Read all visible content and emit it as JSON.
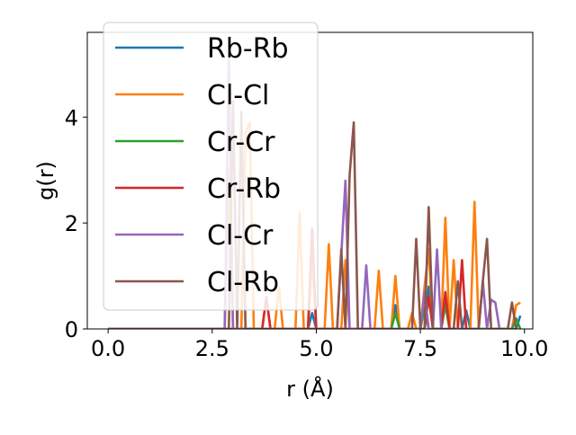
{
  "chart_data": {
    "type": "line",
    "title": "",
    "xlabel": "r (Å)",
    "ylabel": "g(r)",
    "xlim": [
      -0.5,
      10.2
    ],
    "ylim": [
      0,
      5.6
    ],
    "xticks": [
      0.0,
      2.5,
      5.0,
      7.5,
      10.0
    ],
    "xtick_labels": [
      "0.0",
      "2.5",
      "5.0",
      "7.5",
      "10.0"
    ],
    "yticks": [
      0,
      2,
      4
    ],
    "ytick_labels": [
      "0",
      "2",
      "4"
    ],
    "grid": false,
    "legend_position": "upper-left",
    "series": [
      {
        "name": "Rb-Rb",
        "color": "#1f77b4",
        "x": [
          0.0,
          4.8,
          4.9,
          5.0,
          6.8,
          6.9,
          7.0,
          7.6,
          7.7,
          7.8,
          8.0,
          8.1,
          8.2,
          8.5,
          8.6,
          8.7,
          9.8,
          9.9
        ],
        "y": [
          0,
          0,
          0.3,
          0,
          0,
          0.45,
          0,
          0,
          0.8,
          0,
          0,
          0.6,
          0,
          0,
          0.35,
          0,
          0,
          0.25
        ]
      },
      {
        "name": "Cl-Cl",
        "color": "#ff7f0e",
        "x": [
          0.0,
          2.8,
          2.9,
          3.0,
          3.1,
          3.2,
          3.3,
          3.4,
          3.5,
          3.6,
          3.7,
          3.8,
          3.9,
          4.0,
          4.1,
          4.2,
          4.3,
          4.4,
          4.5,
          4.6,
          4.7,
          4.8,
          4.9,
          5.0,
          5.1,
          5.2,
          5.3,
          5.4,
          5.5,
          5.6,
          5.7,
          5.8,
          5.9,
          6.0,
          6.1,
          6.2,
          6.3,
          6.4,
          6.5,
          6.6,
          6.7,
          6.8,
          6.9,
          7.0,
          7.1,
          7.2,
          7.3,
          7.4,
          7.5,
          7.6,
          7.7,
          7.8,
          7.9,
          8.0,
          8.1,
          8.2,
          8.3,
          8.4,
          8.5,
          8.6,
          8.7,
          8.8,
          8.9,
          9.0,
          9.1,
          9.2,
          9.3,
          9.4,
          9.5,
          9.6,
          9.7,
          9.8,
          9.9
        ],
        "y": [
          0,
          0,
          3.0,
          0,
          0,
          0,
          3.7,
          3.9,
          0,
          0,
          0,
          0.6,
          0,
          0,
          0.8,
          0,
          0,
          0,
          0,
          2.2,
          0,
          0,
          1.3,
          0,
          0,
          0,
          1.6,
          0,
          0,
          0,
          1.3,
          0,
          0,
          0,
          0,
          0,
          0,
          0,
          1.1,
          0,
          0,
          0,
          1.0,
          0,
          0,
          0,
          0.3,
          0,
          0,
          0.8,
          1.5,
          0,
          0,
          0,
          2.1,
          0,
          1.3,
          0,
          0,
          0,
          0,
          2.4,
          0,
          0,
          0,
          0,
          0,
          0,
          0,
          0,
          0,
          0.45,
          0.5
        ]
      },
      {
        "name": "Cr-Cr",
        "color": "#2ca02c",
        "x": [
          0.0,
          6.8,
          6.9,
          7.0,
          7.5,
          7.6,
          7.7,
          8.0,
          8.1,
          8.2,
          9.7,
          9.8,
          9.9
        ],
        "y": [
          0,
          0,
          0.3,
          0,
          0,
          0.4,
          0,
          0,
          0.45,
          0,
          0,
          0.2,
          0
        ]
      },
      {
        "name": "Cr-Rb",
        "color": "#d62728",
        "x": [
          0.0,
          3.7,
          3.8,
          3.9,
          4.8,
          4.9,
          5.0,
          7.6,
          7.7,
          7.8,
          8.0,
          8.1,
          8.2,
          8.4,
          8.5,
          8.6
        ],
        "y": [
          0,
          0,
          0.6,
          0,
          0,
          1.9,
          0,
          0,
          0.6,
          0,
          0,
          0.7,
          0,
          0,
          1.3,
          0
        ]
      },
      {
        "name": "Cl-Cr",
        "color": "#9467bd",
        "x": [
          0.0,
          2.8,
          2.9,
          3.0,
          5.5,
          5.6,
          5.7,
          5.8,
          6.1,
          6.2,
          6.3,
          7.5,
          7.6,
          7.7,
          7.8,
          7.9,
          8.0,
          8.1,
          8.9,
          9.0,
          9.1,
          9.2,
          9.3,
          9.4
        ],
        "y": [
          0,
          0,
          5.1,
          0,
          0,
          1.4,
          2.8,
          0,
          0,
          1.2,
          0,
          0,
          0.7,
          0,
          0,
          1.5,
          0,
          0,
          0,
          0.9,
          0,
          0.55,
          0.5,
          0
        ]
      },
      {
        "name": "Cl-Rb",
        "color": "#8c564b",
        "x": [
          0.0,
          2.9,
          3.0,
          3.1,
          3.2,
          3.3,
          3.4,
          5.5,
          5.6,
          5.7,
          5.8,
          5.9,
          6.0,
          7.2,
          7.3,
          7.4,
          7.5,
          7.6,
          7.7,
          7.8,
          8.3,
          8.4,
          8.5,
          8.9,
          9.0,
          9.1,
          9.2,
          9.6,
          9.7,
          9.8
        ],
        "y": [
          0,
          0,
          4.3,
          0,
          4.1,
          0,
          0,
          0,
          1.5,
          0,
          2.9,
          3.9,
          0,
          0,
          0,
          1.7,
          0,
          0,
          2.3,
          0,
          0,
          0.9,
          0,
          0,
          0.9,
          1.7,
          0,
          0,
          0.5,
          0
        ]
      }
    ]
  }
}
